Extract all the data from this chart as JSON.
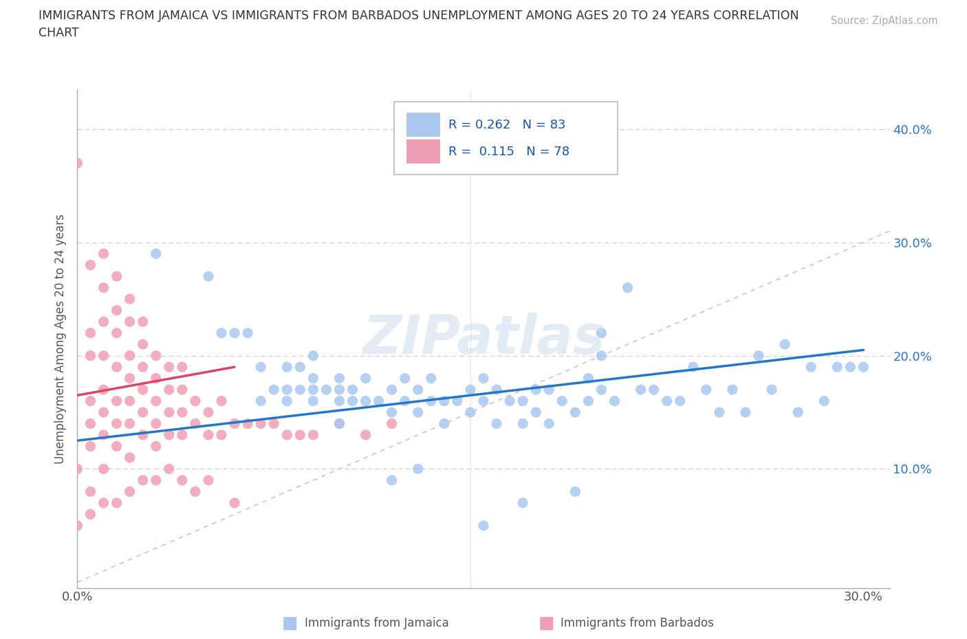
{
  "title_line1": "IMMIGRANTS FROM JAMAICA VS IMMIGRANTS FROM BARBADOS UNEMPLOYMENT AMONG AGES 20 TO 24 YEARS CORRELATION",
  "title_line2": "CHART",
  "source": "Source: ZipAtlas.com",
  "ylabel": "Unemployment Among Ages 20 to 24 years",
  "xlim": [
    0.0,
    0.31
  ],
  "ylim": [
    -0.005,
    0.435
  ],
  "xtick_positions": [
    0.0,
    0.05,
    0.1,
    0.15,
    0.2,
    0.25,
    0.3
  ],
  "xticklabels": [
    "0.0%",
    "",
    "",
    "",
    "",
    "",
    "30.0%"
  ],
  "ytick_positions": [
    0.0,
    0.1,
    0.2,
    0.3,
    0.4
  ],
  "yticklabels_right": [
    "",
    "10.0%",
    "20.0%",
    "30.0%",
    "40.0%"
  ],
  "jamaica_color": "#a8c8f0",
  "barbados_color": "#f0a0b4",
  "jamaica_line_color": "#2277cc",
  "barbados_line_color": "#dd4466",
  "diagonal_color": "#e8b8c0",
  "watermark": "ZIPatlas",
  "jamaica_line_x0": 0.0,
  "jamaica_line_y0": 0.125,
  "jamaica_line_x1": 0.3,
  "jamaica_line_y1": 0.205,
  "barbados_line_x0": 0.0,
  "barbados_line_y0": 0.165,
  "barbados_line_x1": 0.06,
  "barbados_line_y1": 0.19,
  "jamaica_x": [
    0.03,
    0.05,
    0.055,
    0.06,
    0.065,
    0.07,
    0.07,
    0.075,
    0.08,
    0.08,
    0.08,
    0.085,
    0.085,
    0.09,
    0.09,
    0.09,
    0.09,
    0.095,
    0.1,
    0.1,
    0.1,
    0.1,
    0.105,
    0.105,
    0.11,
    0.11,
    0.115,
    0.12,
    0.12,
    0.125,
    0.125,
    0.13,
    0.13,
    0.135,
    0.135,
    0.14,
    0.14,
    0.145,
    0.15,
    0.15,
    0.155,
    0.155,
    0.16,
    0.16,
    0.165,
    0.17,
    0.17,
    0.175,
    0.175,
    0.18,
    0.18,
    0.185,
    0.19,
    0.195,
    0.195,
    0.2,
    0.2,
    0.2,
    0.205,
    0.21,
    0.215,
    0.22,
    0.225,
    0.23,
    0.235,
    0.24,
    0.245,
    0.25,
    0.255,
    0.26,
    0.265,
    0.27,
    0.275,
    0.28,
    0.285,
    0.29,
    0.295,
    0.3,
    0.19,
    0.17,
    0.155,
    0.13,
    0.12
  ],
  "jamaica_y": [
    0.29,
    0.27,
    0.22,
    0.22,
    0.22,
    0.19,
    0.16,
    0.17,
    0.17,
    0.19,
    0.16,
    0.17,
    0.19,
    0.16,
    0.17,
    0.18,
    0.2,
    0.17,
    0.14,
    0.16,
    0.17,
    0.18,
    0.16,
    0.17,
    0.16,
    0.18,
    0.16,
    0.15,
    0.17,
    0.16,
    0.18,
    0.15,
    0.17,
    0.16,
    0.18,
    0.14,
    0.16,
    0.16,
    0.15,
    0.17,
    0.16,
    0.18,
    0.14,
    0.17,
    0.16,
    0.14,
    0.16,
    0.15,
    0.17,
    0.14,
    0.17,
    0.16,
    0.15,
    0.16,
    0.18,
    0.17,
    0.2,
    0.22,
    0.16,
    0.26,
    0.17,
    0.17,
    0.16,
    0.16,
    0.19,
    0.17,
    0.15,
    0.17,
    0.15,
    0.2,
    0.17,
    0.21,
    0.15,
    0.19,
    0.16,
    0.19,
    0.19,
    0.19,
    0.08,
    0.07,
    0.05,
    0.1,
    0.09
  ],
  "barbados_x": [
    0.0,
    0.0,
    0.005,
    0.005,
    0.005,
    0.005,
    0.005,
    0.005,
    0.005,
    0.01,
    0.01,
    0.01,
    0.01,
    0.01,
    0.01,
    0.01,
    0.01,
    0.015,
    0.015,
    0.015,
    0.015,
    0.015,
    0.015,
    0.015,
    0.02,
    0.02,
    0.02,
    0.02,
    0.02,
    0.02,
    0.02,
    0.025,
    0.025,
    0.025,
    0.025,
    0.025,
    0.025,
    0.03,
    0.03,
    0.03,
    0.03,
    0.03,
    0.035,
    0.035,
    0.035,
    0.035,
    0.04,
    0.04,
    0.04,
    0.04,
    0.045,
    0.045,
    0.05,
    0.05,
    0.055,
    0.055,
    0.06,
    0.065,
    0.07,
    0.075,
    0.08,
    0.085,
    0.09,
    0.1,
    0.11,
    0.12,
    0.0,
    0.005,
    0.01,
    0.015,
    0.02,
    0.025,
    0.03,
    0.035,
    0.04,
    0.045,
    0.05,
    0.06
  ],
  "barbados_y": [
    0.1,
    0.37,
    0.08,
    0.12,
    0.14,
    0.16,
    0.2,
    0.22,
    0.28,
    0.1,
    0.13,
    0.15,
    0.17,
    0.2,
    0.23,
    0.26,
    0.29,
    0.12,
    0.14,
    0.16,
    0.19,
    0.22,
    0.24,
    0.27,
    0.11,
    0.14,
    0.16,
    0.18,
    0.2,
    0.23,
    0.25,
    0.13,
    0.15,
    0.17,
    0.19,
    0.21,
    0.23,
    0.12,
    0.14,
    0.16,
    0.18,
    0.2,
    0.13,
    0.15,
    0.17,
    0.19,
    0.13,
    0.15,
    0.17,
    0.19,
    0.14,
    0.16,
    0.13,
    0.15,
    0.13,
    0.16,
    0.14,
    0.14,
    0.14,
    0.14,
    0.13,
    0.13,
    0.13,
    0.14,
    0.13,
    0.14,
    0.05,
    0.06,
    0.07,
    0.07,
    0.08,
    0.09,
    0.09,
    0.1,
    0.09,
    0.08,
    0.09,
    0.07
  ]
}
